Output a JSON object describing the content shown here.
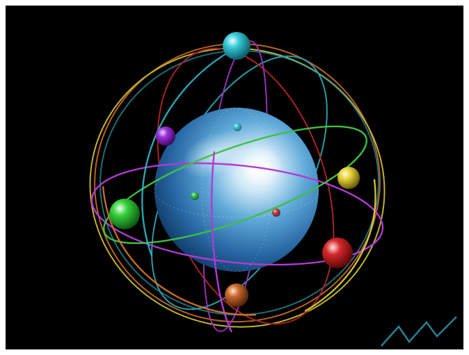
{
  "scene": {
    "background": "#000000",
    "border": "#ffffff",
    "core_sphere": {
      "colors": [
        "#ffffff",
        "#9fd0ee",
        "#3f8fc8",
        "#1d5e98",
        "#0b2f58"
      ]
    },
    "orbits": [
      {
        "name": "orange",
        "color": "#d8742c"
      },
      {
        "name": "yellow",
        "color": "#e4d23a"
      },
      {
        "name": "cyan",
        "color": "#2fb8c8"
      },
      {
        "name": "purple",
        "color": "#b23ad4"
      },
      {
        "name": "green",
        "color": "#3fc042"
      },
      {
        "name": "red",
        "color": "#c42a2a"
      }
    ],
    "satellites": [
      {
        "name": "cyan",
        "color": "#35c9d6"
      },
      {
        "name": "purple",
        "color": "#9c2fd8"
      },
      {
        "name": "yellow",
        "color": "#e6d43a"
      },
      {
        "name": "green",
        "color": "#35cf3b"
      },
      {
        "name": "red",
        "color": "#d4272a"
      },
      {
        "name": "orange",
        "color": "#c96a2c"
      }
    ],
    "zigzag_icon_color": "#2a7f95"
  }
}
